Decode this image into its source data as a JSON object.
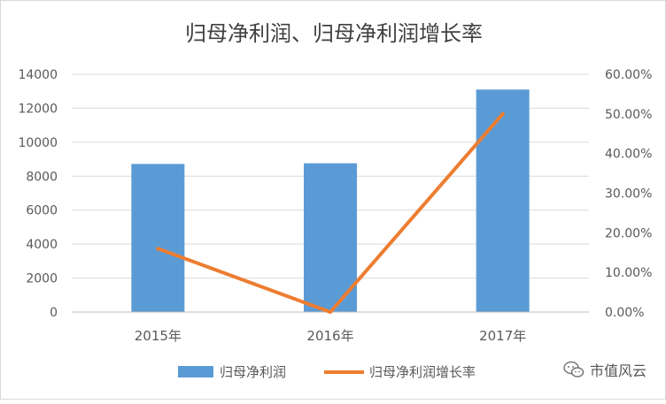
{
  "chart_data": {
    "type": "bar",
    "title": "归母净利润、归母净利润增长率",
    "categories": [
      "2015年",
      "2016年",
      "2017年"
    ],
    "series": [
      {
        "name": "归母净利润",
        "type": "bar",
        "axis": "left",
        "values": [
          8720,
          8760,
          13100
        ],
        "color": "#5b9bd5"
      },
      {
        "name": "归母净利润增长率",
        "type": "line",
        "axis": "right",
        "values": [
          0.16,
          0.0,
          0.5
        ],
        "color": "#ed7d31"
      }
    ],
    "y_left": {
      "min": 0,
      "max": 14000,
      "ticks": [
        "0",
        "2000",
        "4000",
        "6000",
        "8000",
        "10000",
        "12000",
        "14000"
      ]
    },
    "y_right": {
      "min": 0,
      "max": 0.6,
      "ticks": [
        "0.00%",
        "10.00%",
        "20.00%",
        "30.00%",
        "40.00%",
        "50.00%",
        "60.00%"
      ]
    },
    "grid": true,
    "legend": "bottom"
  },
  "watermark": {
    "text": "市值风云",
    "icon": "wechat-icon"
  }
}
